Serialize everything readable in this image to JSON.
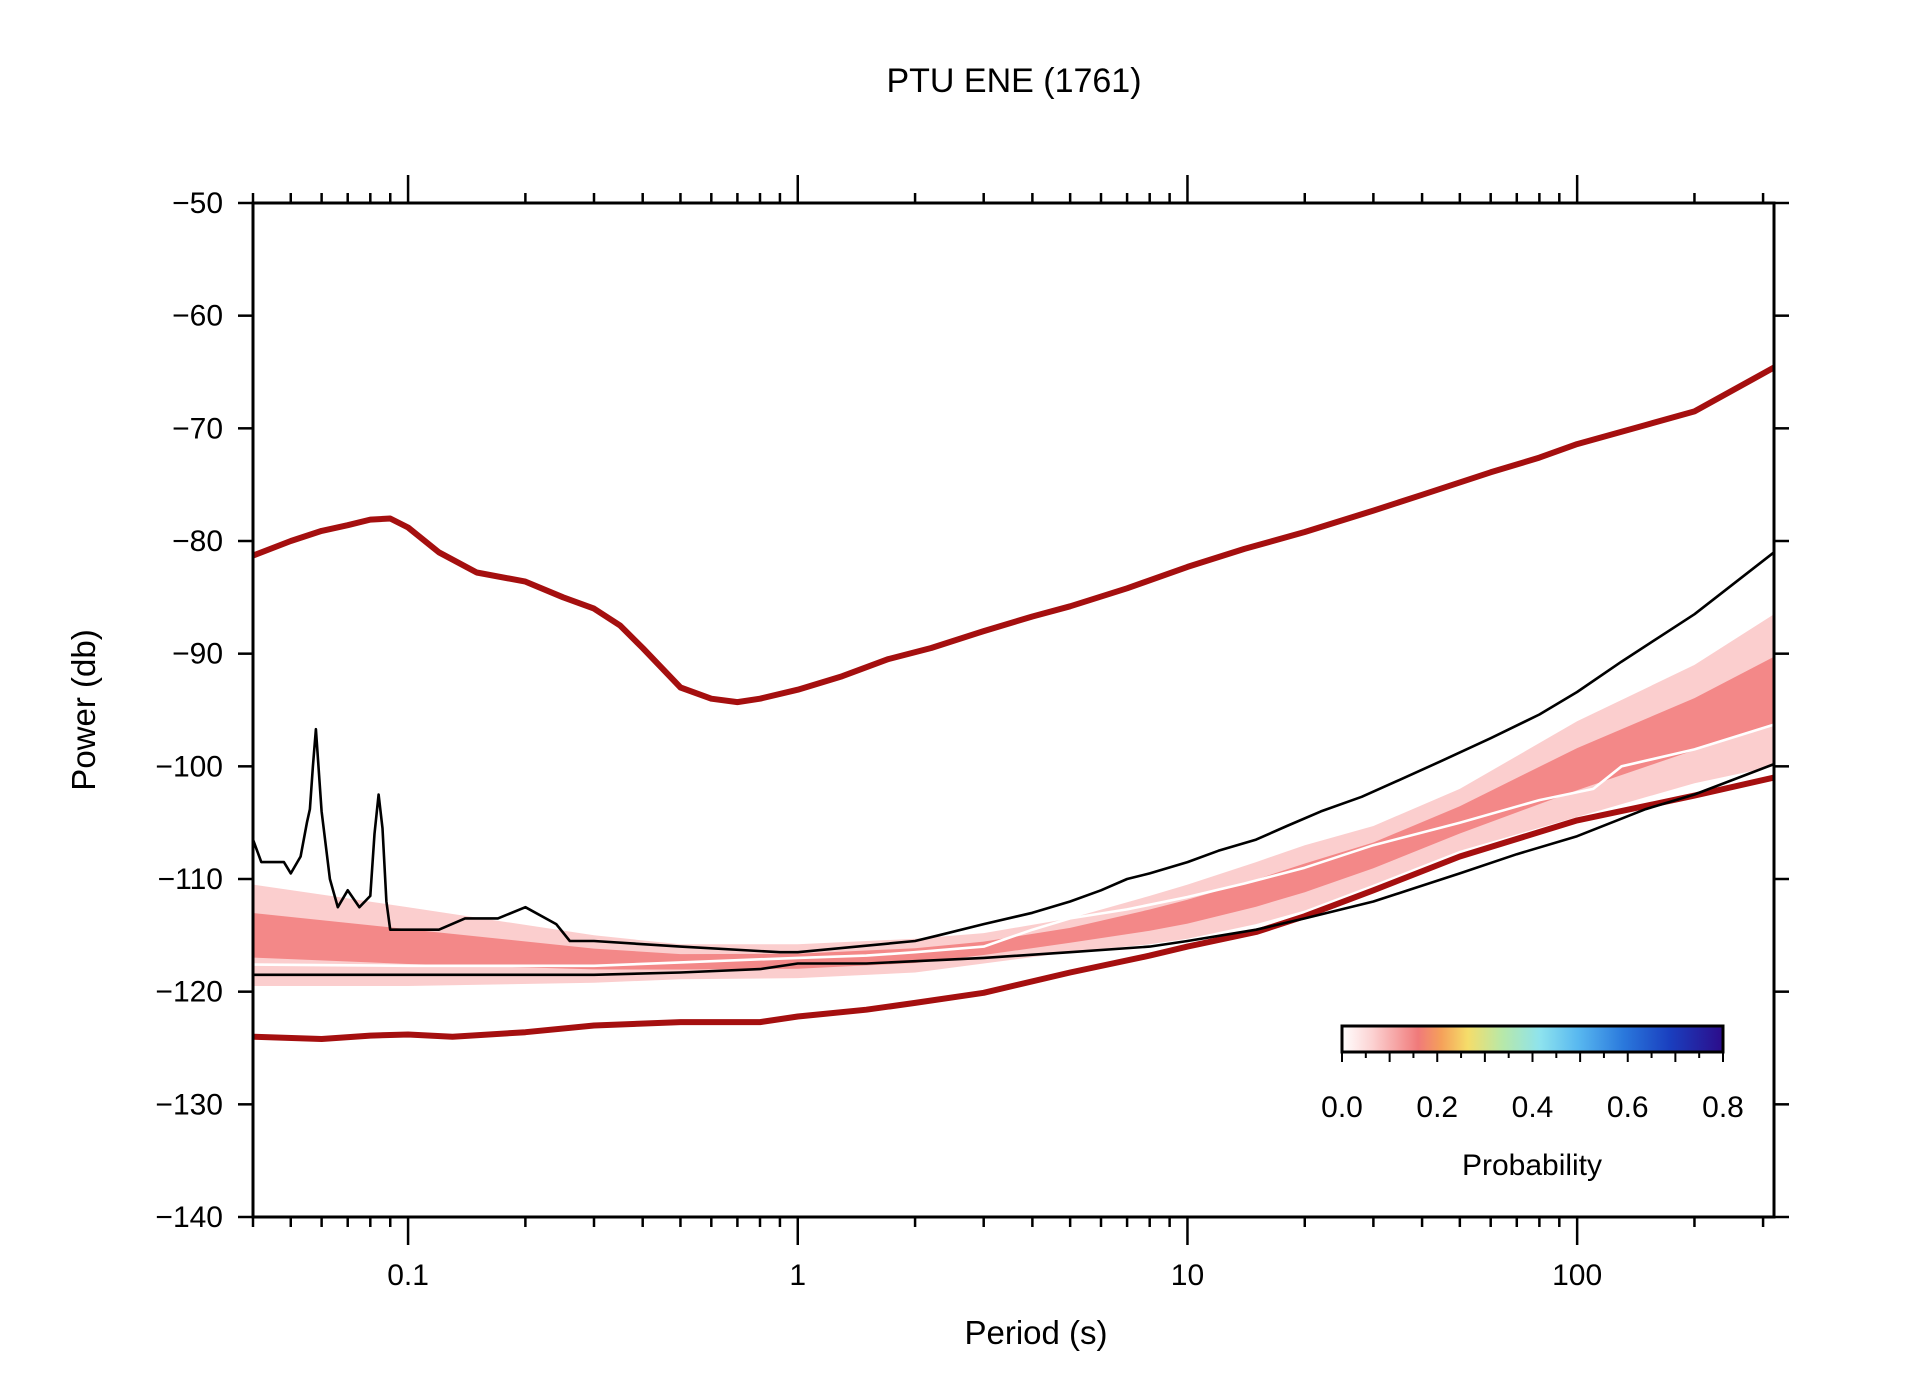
{
  "chart_data": {
    "type": "line",
    "title": "PTU ENE (1761)",
    "xlabel": "Period (s)",
    "ylabel": "Power (db)",
    "x_scale": "log",
    "xlim": [
      0.04,
      320
    ],
    "ylim": [
      -140,
      -50
    ],
    "x_tick_values": [
      0.1,
      1,
      10,
      100
    ],
    "x_tick_labels": [
      "0.1",
      "1",
      "10",
      "100"
    ],
    "y_tick_values": [
      -140,
      -130,
      -120,
      -110,
      -100,
      -90,
      -80,
      -70,
      -60,
      -50
    ],
    "y_tick_labels": [
      "−140",
      "−130",
      "−120",
      "−110",
      "−100",
      "−90",
      "−80",
      "−70",
      "−60",
      "−50"
    ],
    "grid": false,
    "colorbar": {
      "label": "Probability",
      "ticks": [
        "0.0",
        "0.2",
        "0.4",
        "0.6",
        "0.8"
      ],
      "range": [
        0,
        0.8
      ],
      "placement": "lower-right"
    },
    "colors": {
      "noise_model": "#a50f0f",
      "percentile": "#000000",
      "mode": "#ffffff",
      "pdf_low": "#fbc9c9",
      "pdf_mid": "#f07070"
    },
    "series": [
      {
        "role": "high-noise-model",
        "x": [
          0.04,
          0.05,
          0.06,
          0.07,
          0.08,
          0.09,
          0.1,
          0.12,
          0.15,
          0.2,
          0.25,
          0.3,
          0.35,
          0.4,
          0.5,
          0.6,
          0.7,
          0.8,
          1,
          1.3,
          1.7,
          2.2,
          3,
          4,
          5,
          7,
          10,
          14,
          20,
          30,
          40,
          60,
          80,
          100,
          150,
          200,
          320
        ],
        "y": [
          -81.3,
          -80,
          -79.1,
          -78.6,
          -78.1,
          -78,
          -78.8,
          -81,
          -82.8,
          -83.6,
          -85,
          -86,
          -87.5,
          -89.5,
          -93,
          -94,
          -94.3,
          -94,
          -93.2,
          -92,
          -90.5,
          -89.5,
          -88,
          -86.7,
          -85.8,
          -84.2,
          -82.3,
          -80.7,
          -79.2,
          -77.3,
          -75.9,
          -73.9,
          -72.6,
          -71.4,
          -69.7,
          -68.5,
          -64.6
        ]
      },
      {
        "role": "low-noise-model",
        "x": [
          0.04,
          0.06,
          0.08,
          0.1,
          0.13,
          0.2,
          0.3,
          0.5,
          0.8,
          1,
          1.5,
          2,
          3,
          5,
          8,
          10,
          15,
          20,
          30,
          50,
          100,
          200,
          320
        ],
        "y": [
          -124,
          -124.2,
          -123.9,
          -123.8,
          -124,
          -123.6,
          -123,
          -122.7,
          -122.7,
          -122.2,
          -121.6,
          -121,
          -120.1,
          -118.3,
          -116.8,
          -116,
          -114.7,
          -113.3,
          -111,
          -108,
          -104.8,
          -102.6,
          -101
        ]
      },
      {
        "role": "upper-percentile",
        "x": [
          0.04,
          0.042,
          0.048,
          0.05,
          0.053,
          0.055,
          0.056,
          0.057,
          0.058,
          0.06,
          0.063,
          0.066,
          0.07,
          0.075,
          0.08,
          0.082,
          0.084,
          0.086,
          0.088,
          0.09,
          0.1,
          0.12,
          0.14,
          0.17,
          0.2,
          0.24,
          0.26,
          0.3,
          0.5,
          0.9,
          1,
          2,
          2.3,
          3,
          4,
          5,
          6,
          7,
          8,
          10,
          12,
          15,
          18,
          22,
          28,
          35,
          45,
          60,
          80,
          100,
          130,
          200,
          320
        ],
        "y": [
          -106.5,
          -108.5,
          -108.5,
          -109.5,
          -108,
          -105,
          -103.8,
          -100,
          -96.7,
          -104,
          -110,
          -112.5,
          -111,
          -112.5,
          -111.5,
          -106,
          -102.5,
          -105.5,
          -112,
          -114.5,
          -114.5,
          -114.5,
          -113.5,
          -113.5,
          -112.5,
          -114,
          -115.5,
          -115.5,
          -116,
          -116.5,
          -116.5,
          -115.5,
          -115,
          -114,
          -113,
          -112,
          -111,
          -110,
          -109.5,
          -108.5,
          -107.5,
          -106.5,
          -105.3,
          -104,
          -102.7,
          -101.2,
          -99.5,
          -97.5,
          -95.4,
          -93.4,
          -90.7,
          -86.5,
          -81
        ]
      },
      {
        "role": "lower-percentile",
        "x": [
          0.04,
          0.05,
          0.07,
          0.1,
          0.2,
          0.3,
          0.5,
          0.8,
          1,
          1.5,
          2,
          3,
          5,
          8,
          10,
          15,
          20,
          30,
          50,
          70,
          100,
          150,
          200,
          320
        ],
        "y": [
          -118.5,
          -118.5,
          -118.5,
          -118.5,
          -118.5,
          -118.5,
          -118.3,
          -118,
          -117.5,
          -117.5,
          -117.3,
          -117,
          -116.5,
          -116,
          -115.5,
          -114.5,
          -113.5,
          -112,
          -109.5,
          -107.8,
          -106.2,
          -103.8,
          -102.5,
          -99.8
        ]
      },
      {
        "role": "mode",
        "x": [
          0.04,
          0.1,
          0.3,
          0.5,
          1,
          1.5,
          2,
          3,
          4,
          5,
          7,
          10,
          14,
          20,
          30,
          50,
          80,
          110,
          130,
          200,
          320
        ],
        "y": [
          -117.6,
          -117.7,
          -117.7,
          -117.4,
          -117,
          -116.8,
          -116.5,
          -116,
          -114.5,
          -113.5,
          -112.7,
          -111.6,
          -110.4,
          -109,
          -107,
          -105,
          -103,
          -102,
          -100,
          -98.5,
          -96.3
        ]
      }
    ],
    "probability_band": {
      "x": [
        0.04,
        0.1,
        0.3,
        0.5,
        1,
        2,
        3,
        5,
        8,
        10,
        15,
        20,
        30,
        50,
        100,
        200,
        320
      ],
      "lower": [
        -119.5,
        -119.5,
        -119.2,
        -118.9,
        -118.8,
        -118.3,
        -117.5,
        -116.5,
        -115.8,
        -115.3,
        -114,
        -112.8,
        -110.5,
        -107.5,
        -104.5,
        -101.5,
        -100
      ],
      "upper": [
        -110.5,
        -112.5,
        -115,
        -115.8,
        -115.8,
        -115.3,
        -114.8,
        -113.5,
        -111.5,
        -110.5,
        -108.5,
        -107,
        -105.3,
        -102,
        -96,
        -91,
        -86.5
      ]
    }
  }
}
